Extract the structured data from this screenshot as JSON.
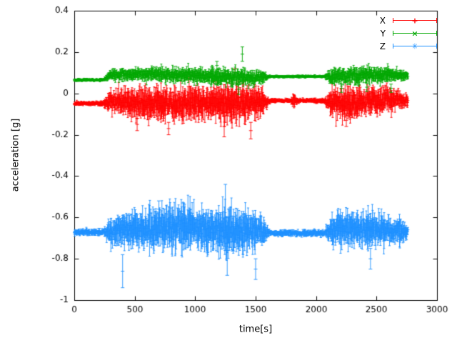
{
  "chart_data": {
    "type": "scatter",
    "subtype": "yerrorbars-time-series",
    "title": "",
    "xlabel": "time[s]",
    "ylabel": "acceleration [g]",
    "xlim": [
      0,
      3000
    ],
    "ylim": [
      -1,
      0.4
    ],
    "x_ticks": [
      0,
      500,
      1000,
      1500,
      2000,
      2500,
      3000
    ],
    "x_tick_labels": [
      "0",
      "500",
      "1000",
      "1500",
      "2000",
      "2500",
      "3000"
    ],
    "y_ticks": [
      -1,
      -0.8,
      -0.6,
      -0.4,
      -0.2,
      0,
      0.2,
      0.4
    ],
    "y_tick_labels": [
      "-1",
      "-0.8",
      "-0.6",
      "-0.4",
      "-0.2",
      "0",
      "0.2",
      "0.4"
    ],
    "t_start": 0,
    "t_end": 2760,
    "grid": false,
    "legend_position": "top right",
    "series": [
      {
        "name": "X",
        "color": "#ff0000",
        "marker": "+",
        "baseline": [
          [
            0,
            -0.048
          ],
          [
            240,
            -0.048
          ],
          [
            300,
            -0.035
          ],
          [
            500,
            -0.045
          ],
          [
            800,
            -0.05
          ],
          [
            1100,
            -0.045
          ],
          [
            1400,
            -0.05
          ],
          [
            1600,
            -0.04
          ],
          [
            1640,
            -0.035
          ],
          [
            2060,
            -0.035
          ],
          [
            2110,
            -0.045
          ],
          [
            2400,
            -0.04
          ],
          [
            2550,
            -0.03
          ],
          [
            2760,
            -0.035
          ]
        ],
        "noise": [
          [
            0,
            0.008
          ],
          [
            240,
            0.008
          ],
          [
            290,
            0.045
          ],
          [
            450,
            0.055
          ],
          [
            700,
            0.07
          ],
          [
            900,
            0.065
          ],
          [
            1100,
            0.06
          ],
          [
            1250,
            0.085
          ],
          [
            1400,
            0.07
          ],
          [
            1550,
            0.055
          ],
          [
            1610,
            0.008
          ],
          [
            1790,
            0.008
          ],
          [
            1815,
            0.03
          ],
          [
            1845,
            0.008
          ],
          [
            2070,
            0.008
          ],
          [
            2120,
            0.055
          ],
          [
            2300,
            0.065
          ],
          [
            2500,
            0.055
          ],
          [
            2650,
            0.045
          ],
          [
            2760,
            0.02
          ]
        ],
        "spikes": [
          [
            520,
            -0.15,
            0.03
          ],
          [
            780,
            -0.17,
            0.03
          ],
          [
            1240,
            -0.16,
            0.05
          ],
          [
            1330,
            0.1,
            0.02
          ],
          [
            1460,
            -0.18,
            0.04
          ],
          [
            2250,
            -0.13,
            0.03
          ]
        ]
      },
      {
        "name": "Y",
        "color": "#00a800",
        "marker": "×",
        "baseline": [
          [
            0,
            0.065
          ],
          [
            240,
            0.065
          ],
          [
            300,
            0.09
          ],
          [
            700,
            0.092
          ],
          [
            1000,
            0.085
          ],
          [
            1300,
            0.08
          ],
          [
            1500,
            0.075
          ],
          [
            1620,
            0.082
          ],
          [
            2060,
            0.082
          ],
          [
            2150,
            0.08
          ],
          [
            2400,
            0.09
          ],
          [
            2600,
            0.092
          ],
          [
            2760,
            0.085
          ]
        ],
        "noise": [
          [
            0,
            0.006
          ],
          [
            240,
            0.006
          ],
          [
            300,
            0.022
          ],
          [
            700,
            0.028
          ],
          [
            1100,
            0.03
          ],
          [
            1350,
            0.035
          ],
          [
            1550,
            0.028
          ],
          [
            1610,
            0.005
          ],
          [
            2070,
            0.005
          ],
          [
            2130,
            0.035
          ],
          [
            2400,
            0.032
          ],
          [
            2650,
            0.028
          ],
          [
            2760,
            0.012
          ]
        ],
        "spikes": [
          [
            1180,
            0.135,
            0.02
          ],
          [
            1360,
            0.02,
            0.025
          ],
          [
            1390,
            0.19,
            0.035
          ],
          [
            2210,
            0.025,
            0.02
          ],
          [
            2420,
            0.03,
            0.02
          ],
          [
            2620,
            0.025,
            0.02
          ]
        ]
      },
      {
        "name": "Z",
        "color": "#1e90ff",
        "marker": "✳",
        "baseline": [
          [
            0,
            -0.672
          ],
          [
            240,
            -0.672
          ],
          [
            320,
            -0.665
          ],
          [
            700,
            -0.655
          ],
          [
            900,
            -0.645
          ],
          [
            1100,
            -0.66
          ],
          [
            1300,
            -0.67
          ],
          [
            1550,
            -0.668
          ],
          [
            1620,
            -0.676
          ],
          [
            2060,
            -0.676
          ],
          [
            2130,
            -0.665
          ],
          [
            2300,
            -0.655
          ],
          [
            2500,
            -0.66
          ],
          [
            2760,
            -0.67
          ]
        ],
        "noise": [
          [
            0,
            0.012
          ],
          [
            240,
            0.012
          ],
          [
            300,
            0.05
          ],
          [
            450,
            0.07
          ],
          [
            650,
            0.08
          ],
          [
            850,
            0.09
          ],
          [
            1000,
            0.075
          ],
          [
            1200,
            0.09
          ],
          [
            1300,
            0.1
          ],
          [
            1450,
            0.08
          ],
          [
            1560,
            0.06
          ],
          [
            1615,
            0.012
          ],
          [
            2070,
            0.012
          ],
          [
            2130,
            0.06
          ],
          [
            2250,
            0.075
          ],
          [
            2450,
            0.07
          ],
          [
            2600,
            0.06
          ],
          [
            2700,
            0.05
          ],
          [
            2760,
            0.025
          ]
        ],
        "spikes": [
          [
            400,
            -0.86,
            0.08
          ],
          [
            700,
            -0.56,
            0.04
          ],
          [
            900,
            -0.57,
            0.04
          ],
          [
            1250,
            -0.6,
            0.16
          ],
          [
            1265,
            -0.76,
            0.12
          ],
          [
            1500,
            -0.85,
            0.05
          ],
          [
            2450,
            -0.8,
            0.05
          ]
        ]
      }
    ]
  }
}
